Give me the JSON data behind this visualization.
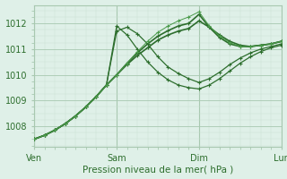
{
  "xlabel": "Pression niveau de la mer( hPa )",
  "bg_color": "#dff0e8",
  "grid_color_major": "#a8c8b0",
  "grid_color_minor": "#c8e0d0",
  "xlim": [
    0,
    72
  ],
  "ylim": [
    1007.2,
    1012.7
  ],
  "yticks": [
    1008,
    1009,
    1010,
    1011,
    1012
  ],
  "xtick_positions": [
    0,
    24,
    48,
    72
  ],
  "xtick_labels": [
    "Ven",
    "Sam",
    "Dim",
    "Lun"
  ],
  "series": [
    {
      "pts": [
        [
          0,
          1007.5
        ],
        [
          3,
          1007.65
        ],
        [
          6,
          1007.85
        ],
        [
          9,
          1008.1
        ],
        [
          12,
          1008.4
        ],
        [
          15,
          1008.75
        ],
        [
          18,
          1009.15
        ],
        [
          21,
          1009.6
        ],
        [
          24,
          1011.9
        ],
        [
          27,
          1011.55
        ],
        [
          30,
          1011.0
        ],
        [
          33,
          1010.5
        ],
        [
          36,
          1010.1
        ],
        [
          39,
          1009.8
        ],
        [
          42,
          1009.6
        ],
        [
          45,
          1009.5
        ],
        [
          48,
          1009.45
        ],
        [
          51,
          1009.6
        ],
        [
          54,
          1009.85
        ],
        [
          57,
          1010.15
        ],
        [
          60,
          1010.45
        ],
        [
          63,
          1010.7
        ],
        [
          66,
          1010.9
        ],
        [
          69,
          1011.05
        ],
        [
          72,
          1011.15
        ]
      ],
      "color": "#2d6e2d",
      "lw": 0.9
    },
    {
      "pts": [
        [
          0,
          1007.5
        ],
        [
          3,
          1007.65
        ],
        [
          6,
          1007.85
        ],
        [
          9,
          1008.1
        ],
        [
          12,
          1008.4
        ],
        [
          15,
          1008.75
        ],
        [
          18,
          1009.15
        ],
        [
          21,
          1009.6
        ],
        [
          24,
          1011.7
        ],
        [
          27,
          1011.85
        ],
        [
          30,
          1011.6
        ],
        [
          33,
          1011.2
        ],
        [
          36,
          1010.7
        ],
        [
          39,
          1010.3
        ],
        [
          42,
          1010.05
        ],
        [
          45,
          1009.85
        ],
        [
          48,
          1009.7
        ],
        [
          51,
          1009.85
        ],
        [
          54,
          1010.1
        ],
        [
          57,
          1010.4
        ],
        [
          60,
          1010.65
        ],
        [
          63,
          1010.85
        ],
        [
          66,
          1011.0
        ],
        [
          69,
          1011.1
        ],
        [
          72,
          1011.2
        ]
      ],
      "color": "#2d6e2d",
      "lw": 0.9
    },
    {
      "pts": [
        [
          0,
          1007.5
        ],
        [
          3,
          1007.65
        ],
        [
          6,
          1007.85
        ],
        [
          9,
          1008.1
        ],
        [
          12,
          1008.4
        ],
        [
          15,
          1008.75
        ],
        [
          18,
          1009.15
        ],
        [
          21,
          1009.6
        ],
        [
          24,
          1010.0
        ],
        [
          27,
          1010.4
        ],
        [
          30,
          1010.75
        ],
        [
          33,
          1011.05
        ],
        [
          36,
          1011.35
        ],
        [
          39,
          1011.55
        ],
        [
          42,
          1011.7
        ],
        [
          45,
          1011.8
        ],
        [
          48,
          1012.1
        ],
        [
          51,
          1011.85
        ],
        [
          54,
          1011.55
        ],
        [
          57,
          1011.3
        ],
        [
          60,
          1011.15
        ],
        [
          63,
          1011.1
        ],
        [
          66,
          1011.15
        ],
        [
          69,
          1011.2
        ],
        [
          72,
          1011.3
        ]
      ],
      "color": "#2d6e2d",
      "lw": 1.2
    },
    {
      "pts": [
        [
          0,
          1007.5
        ],
        [
          3,
          1007.65
        ],
        [
          6,
          1007.85
        ],
        [
          9,
          1008.1
        ],
        [
          12,
          1008.4
        ],
        [
          15,
          1008.75
        ],
        [
          18,
          1009.15
        ],
        [
          21,
          1009.6
        ],
        [
          24,
          1010.0
        ],
        [
          27,
          1010.45
        ],
        [
          30,
          1010.85
        ],
        [
          33,
          1011.2
        ],
        [
          36,
          1011.5
        ],
        [
          39,
          1011.72
        ],
        [
          42,
          1011.9
        ],
        [
          45,
          1012.0
        ],
        [
          48,
          1012.35
        ],
        [
          51,
          1011.85
        ],
        [
          54,
          1011.45
        ],
        [
          57,
          1011.2
        ],
        [
          60,
          1011.1
        ],
        [
          63,
          1011.1
        ],
        [
          66,
          1011.15
        ],
        [
          69,
          1011.2
        ],
        [
          72,
          1011.3
        ]
      ],
      "color": "#2d6e2d",
      "lw": 1.2
    },
    {
      "pts": [
        [
          0,
          1007.5
        ],
        [
          3,
          1007.65
        ],
        [
          6,
          1007.85
        ],
        [
          9,
          1008.1
        ],
        [
          12,
          1008.4
        ],
        [
          15,
          1008.75
        ],
        [
          18,
          1009.15
        ],
        [
          21,
          1009.6
        ],
        [
          24,
          1010.0
        ],
        [
          27,
          1010.45
        ],
        [
          30,
          1010.9
        ],
        [
          33,
          1011.3
        ],
        [
          36,
          1011.65
        ],
        [
          39,
          1011.9
        ],
        [
          42,
          1012.1
        ],
        [
          45,
          1012.25
        ],
        [
          48,
          1012.45
        ],
        [
          51,
          1011.9
        ],
        [
          54,
          1011.5
        ],
        [
          57,
          1011.25
        ],
        [
          60,
          1011.1
        ],
        [
          63,
          1011.1
        ],
        [
          66,
          1011.15
        ],
        [
          69,
          1011.2
        ],
        [
          72,
          1011.3
        ]
      ],
      "color": "#4a9a4a",
      "lw": 0.7
    }
  ]
}
